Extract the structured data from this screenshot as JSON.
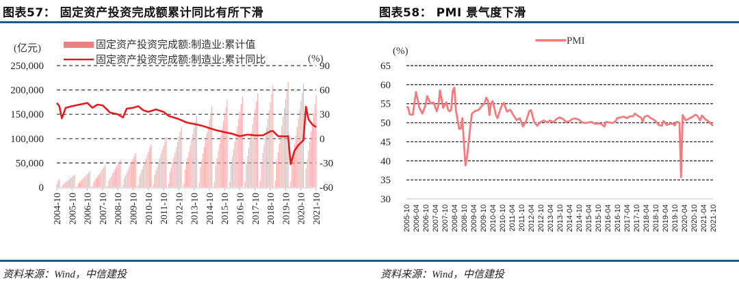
{
  "header": {
    "left_title": "图表57： 固定资产投资完成额累计同比有所下滑",
    "right_title": "图表58： PMI 景气度下滑"
  },
  "footer": {
    "left_source": "资料来源：Wind，中信建投",
    "right_source": "资料来源：Wind，中信建投"
  },
  "colors": {
    "rule": "#1f5a8a",
    "bar": "#f4a9a9",
    "legend_bar": "#f08080",
    "line": "#e8191c",
    "pmi": "#f47a7e",
    "grid": "#333333"
  },
  "chart_data": [
    {
      "type": "bar+line",
      "title": "固定资产投资完成额累计同比有所下滑",
      "ylabel_left": "(亿元)",
      "ylabel_right": "(%)",
      "ylim_left": [
        0,
        250000
      ],
      "ylim_right": [
        -60,
        90
      ],
      "yticks_left": [
        "250,000",
        "200,000",
        "150,000",
        "100,000",
        "50,000",
        "0"
      ],
      "yticks_right": [
        "90",
        "60",
        "30",
        "0",
        "-30",
        "-60"
      ],
      "grid": true,
      "legend": [
        "固定资产投资完成额:制造业:累计值",
        "固定资产投资完成额:制造业:累计同比"
      ],
      "legend_position": "top",
      "xticks": [
        "2004-10",
        "2005-10",
        "2006-10",
        "2007-10",
        "2008-10",
        "2009-10",
        "2010-10",
        "2011-10",
        "2012-10",
        "2013-10",
        "2014-10",
        "2015-10",
        "2016-10",
        "2017-10",
        "2018-10",
        "2019-10",
        "2020-10",
        "2021-10"
      ],
      "series": [
        {
          "name": "固定资产投资完成额:制造业:累计值",
          "kind": "bar",
          "axis": "left",
          "annual_peaks": {
            "2004": 17000,
            "2005": 26000,
            "2006": 33000,
            "2007": 45000,
            "2008": 57000,
            "2009": 71000,
            "2010": 88000,
            "2011": 103000,
            "2012": 124000,
            "2013": 147000,
            "2014": 167000,
            "2015": 180000,
            "2016": 187000,
            "2017": 193000,
            "2018": 210000,
            "2019": 217000,
            "2020": 212000,
            "2021-10": 190000
          }
        },
        {
          "name": "固定资产投资完成额:制造业:累计同比",
          "kind": "line",
          "axis": "right",
          "points": [
            [
              "2004-10",
              44
            ],
            [
              "2004-12",
              40
            ],
            [
              "2005-02",
              25
            ],
            [
              "2005-05",
              38
            ],
            [
              "2005-10",
              40
            ],
            [
              "2006-04",
              42
            ],
            [
              "2006-10",
              44
            ],
            [
              "2007-02",
              38
            ],
            [
              "2007-06",
              42
            ],
            [
              "2007-10",
              41
            ],
            [
              "2008-04",
              32
            ],
            [
              "2008-10",
              30
            ],
            [
              "2009-02",
              26
            ],
            [
              "2009-05",
              37
            ],
            [
              "2009-10",
              38
            ],
            [
              "2010-02",
              40
            ],
            [
              "2010-06",
              35
            ],
            [
              "2010-10",
              33
            ],
            [
              "2011-04",
              36
            ],
            [
              "2011-10",
              33
            ],
            [
              "2012-02",
              28
            ],
            [
              "2012-06",
              26
            ],
            [
              "2012-10",
              24
            ],
            [
              "2013-04",
              20
            ],
            [
              "2013-10",
              18
            ],
            [
              "2014-04",
              16
            ],
            [
              "2014-10",
              13
            ],
            [
              "2015-04",
              10
            ],
            [
              "2015-10",
              8
            ],
            [
              "2016-04",
              6
            ],
            [
              "2016-10",
              3
            ],
            [
              "2017-04",
              5
            ],
            [
              "2017-10",
              4
            ],
            [
              "2018-04",
              4
            ],
            [
              "2018-10",
              9
            ],
            [
              "2018-12",
              9.5
            ],
            [
              "2019-04",
              3
            ],
            [
              "2019-10",
              2.6
            ],
            [
              "2019-12",
              3.1
            ],
            [
              "2020-02",
              -31.5
            ],
            [
              "2020-05",
              -14.8
            ],
            [
              "2020-08",
              -8.1
            ],
            [
              "2020-11",
              -3.5
            ],
            [
              "2020-12",
              -2.2
            ],
            [
              "2021-02",
              39.3
            ],
            [
              "2021-04",
              23.8
            ],
            [
              "2021-07",
              17.3
            ],
            [
              "2021-10",
              14.2
            ]
          ]
        }
      ]
    },
    {
      "type": "line",
      "title": "PMI 景气度下滑",
      "ylabel": "(%)",
      "ylim": [
        30,
        65
      ],
      "yticks": [
        "65",
        "60",
        "55",
        "50",
        "45",
        "40",
        "35",
        "30"
      ],
      "grid": true,
      "legend": [
        "PMI"
      ],
      "legend_position": "top",
      "xticks": [
        "2005-10",
        "2006-04",
        "2006-10",
        "2007-04",
        "2007-10",
        "2008-04",
        "2008-10",
        "2009-04",
        "2009-10",
        "2010-04",
        "2010-10",
        "2011-04",
        "2011-10",
        "2012-04",
        "2012-10",
        "2013-04",
        "2013-10",
        "2014-04",
        "2014-10",
        "2015-04",
        "2015-10",
        "2016-04",
        "2016-10",
        "2017-04",
        "2017-10",
        "2018-04",
        "2018-10",
        "2019-04",
        "2019-10",
        "2020-04",
        "2020-10",
        "2021-04",
        "2021-10"
      ],
      "series": [
        {
          "name": "PMI",
          "points": [
            [
              "2005-10",
              54.1
            ],
            [
              "2005-11",
              54.1
            ],
            [
              "2005-12",
              52.2
            ],
            [
              "2006-02",
              52.1
            ],
            [
              "2006-03",
              55.3
            ],
            [
              "2006-04",
              58.1
            ],
            [
              "2006-06",
              54.0
            ],
            [
              "2006-08",
              52.4
            ],
            [
              "2006-10",
              54.7
            ],
            [
              "2006-11",
              57.0
            ],
            [
              "2007-01",
              55.1
            ],
            [
              "2007-03",
              55.3
            ],
            [
              "2007-05",
              53.0
            ],
            [
              "2007-06",
              54.5
            ],
            [
              "2007-07",
              58.5
            ],
            [
              "2007-09",
              53.9
            ],
            [
              "2007-11",
              55.4
            ],
            [
              "2007-12",
              53.5
            ],
            [
              "2008-01",
              53.0
            ],
            [
              "2008-02",
              53.4
            ],
            [
              "2008-03",
              58.4
            ],
            [
              "2008-04",
              59.2
            ],
            [
              "2008-05",
              53.3
            ],
            [
              "2008-07",
              48.4
            ],
            [
              "2008-08",
              48.4
            ],
            [
              "2008-09",
              51.2
            ],
            [
              "2008-10",
              44.6
            ],
            [
              "2008-11",
              38.8
            ],
            [
              "2008-12",
              41.2
            ],
            [
              "2009-02",
              49.0
            ],
            [
              "2009-03",
              52.4
            ],
            [
              "2009-05",
              53.1
            ],
            [
              "2009-07",
              53.3
            ],
            [
              "2009-09",
              54.3
            ],
            [
              "2009-11",
              55.2
            ],
            [
              "2009-12",
              56.6
            ],
            [
              "2010-01",
              55.8
            ],
            [
              "2010-02",
              52.0
            ],
            [
              "2010-03",
              55.1
            ],
            [
              "2010-04",
              55.7
            ],
            [
              "2010-06",
              52.1
            ],
            [
              "2010-07",
              51.2
            ],
            [
              "2010-09",
              53.8
            ],
            [
              "2010-10",
              54.7
            ],
            [
              "2010-11",
              55.2
            ],
            [
              "2011-01",
              52.9
            ],
            [
              "2011-03",
              53.4
            ],
            [
              "2011-05",
              52.0
            ],
            [
              "2011-07",
              50.7
            ],
            [
              "2011-09",
              51.2
            ],
            [
              "2011-11",
              49.0
            ],
            [
              "2012-01",
              50.5
            ],
            [
              "2012-03",
              53.1
            ],
            [
              "2012-04",
              53.3
            ],
            [
              "2012-06",
              50.2
            ],
            [
              "2012-08",
              49.2
            ],
            [
              "2012-10",
              50.2
            ],
            [
              "2012-12",
              50.6
            ],
            [
              "2013-02",
              50.1
            ],
            [
              "2013-04",
              50.6
            ],
            [
              "2013-06",
              50.1
            ],
            [
              "2013-08",
              51.0
            ],
            [
              "2013-10",
              51.4
            ],
            [
              "2013-12",
              51.0
            ],
            [
              "2014-02",
              50.2
            ],
            [
              "2014-04",
              50.4
            ],
            [
              "2014-06",
              51.0
            ],
            [
              "2014-08",
              51.1
            ],
            [
              "2014-10",
              50.8
            ],
            [
              "2014-12",
              50.1
            ],
            [
              "2015-02",
              49.9
            ],
            [
              "2015-04",
              50.1
            ],
            [
              "2015-06",
              50.2
            ],
            [
              "2015-08",
              49.7
            ],
            [
              "2015-10",
              49.8
            ],
            [
              "2015-12",
              49.7
            ],
            [
              "2016-02",
              49.0
            ],
            [
              "2016-03",
              50.2
            ],
            [
              "2016-05",
              50.1
            ],
            [
              "2016-07",
              49.9
            ],
            [
              "2016-09",
              50.4
            ],
            [
              "2016-10",
              51.2
            ],
            [
              "2016-12",
              51.4
            ],
            [
              "2017-02",
              51.6
            ],
            [
              "2017-04",
              51.2
            ],
            [
              "2017-06",
              51.7
            ],
            [
              "2017-08",
              51.7
            ],
            [
              "2017-09",
              52.4
            ],
            [
              "2017-11",
              51.8
            ],
            [
              "2018-01",
              51.3
            ],
            [
              "2018-02",
              50.3
            ],
            [
              "2018-03",
              51.5
            ],
            [
              "2018-05",
              51.9
            ],
            [
              "2018-07",
              51.2
            ],
            [
              "2018-09",
              50.8
            ],
            [
              "2018-11",
              50.0
            ],
            [
              "2018-12",
              49.4
            ],
            [
              "2019-02",
              49.2
            ],
            [
              "2019-03",
              50.5
            ],
            [
              "2019-05",
              49.4
            ],
            [
              "2019-07",
              49.7
            ],
            [
              "2019-09",
              49.8
            ],
            [
              "2019-10",
              49.3
            ],
            [
              "2019-11",
              50.2
            ],
            [
              "2019-12",
              50.2
            ],
            [
              "2020-01",
              50.0
            ],
            [
              "2020-02",
              35.7
            ],
            [
              "2020-03",
              52.0
            ],
            [
              "2020-05",
              50.6
            ],
            [
              "2020-07",
              51.1
            ],
            [
              "2020-09",
              51.5
            ],
            [
              "2020-11",
              52.1
            ],
            [
              "2020-12",
              51.9
            ],
            [
              "2021-01",
              51.3
            ],
            [
              "2021-02",
              50.6
            ],
            [
              "2021-03",
              51.9
            ],
            [
              "2021-05",
              51.0
            ],
            [
              "2021-07",
              50.4
            ],
            [
              "2021-09",
              49.6
            ],
            [
              "2021-10",
              49.2
            ]
          ]
        }
      ]
    }
  ]
}
